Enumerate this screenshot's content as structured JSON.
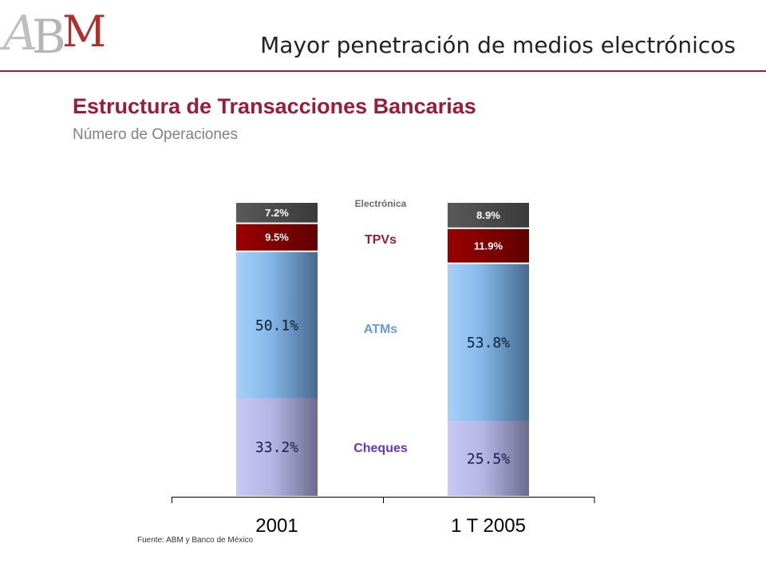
{
  "header": {
    "logo_text": "ABM",
    "title": "Mayor penetración de medios electrónicos"
  },
  "chart_data": {
    "type": "bar",
    "stacked": true,
    "title": "Estructura de Transacciones Bancarias",
    "subtitle": "Número de Operaciones",
    "categories": [
      "2001",
      "1 T 2005"
    ],
    "series": [
      {
        "name": "Cheques",
        "values": [
          33.2,
          25.5
        ],
        "labels": [
          "33.2%",
          "25.5%"
        ],
        "color": "#b0b0e0",
        "label_color": "#1a1a4a"
      },
      {
        "name": "ATMs",
        "values": [
          50.1,
          53.8
        ],
        "labels": [
          "50.1%",
          "53.8%"
        ],
        "color": "#7fb2e5",
        "label_color": "#0d1f33"
      },
      {
        "name": "TPVs",
        "values": [
          9.5,
          11.9
        ],
        "labels": [
          "9.5%",
          "11.9%"
        ],
        "color": "#8b0000",
        "label_color": "#ffffff"
      },
      {
        "name": "Electrónica",
        "values": [
          7.2,
          8.9
        ],
        "labels": [
          "7.2%",
          "8.9%"
        ],
        "color": "#4a4a4a",
        "label_color": "#ffffff"
      }
    ],
    "series_labels": [
      {
        "name": "Electrónica",
        "color": "#6a6a6a"
      },
      {
        "name": "TPVs",
        "color": "#9b1b3a"
      },
      {
        "name": "ATMs",
        "color": "#6699e6"
      },
      {
        "name": "Cheques",
        "color": "#6633cc"
      }
    ],
    "ylim": [
      0,
      100
    ],
    "grid": false
  },
  "footer": {
    "source": "Fuente: ABM y Banco de México"
  }
}
